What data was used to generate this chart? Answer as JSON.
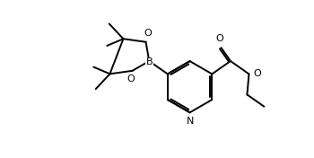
{
  "background": "#ffffff",
  "line_color": "#000000",
  "line_width": 1.4,
  "font_size": 7.5,
  "figsize": [
    3.5,
    1.76
  ],
  "dpi": 100,
  "xlim": [
    0.0,
    10.0
  ],
  "ylim": [
    0.0,
    5.0
  ]
}
